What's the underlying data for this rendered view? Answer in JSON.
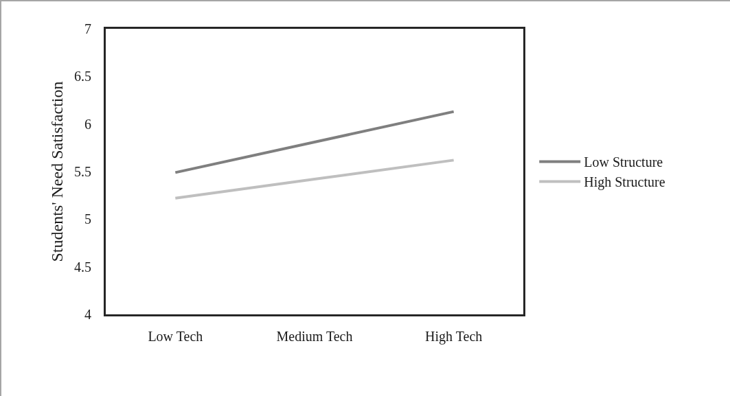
{
  "chart_data": {
    "type": "line",
    "ylabel": "Students' Need Satisfaction",
    "categories": [
      "Low Tech",
      "Medium Tech",
      "High Tech"
    ],
    "series": [
      {
        "name": "Low Structure",
        "color": "#7f7f7f",
        "values": [
          5.49,
          5.81,
          6.13
        ]
      },
      {
        "name": "High Structure",
        "color": "#bfbfbf",
        "values": [
          5.22,
          5.42,
          5.62
        ]
      }
    ],
    "ylim": [
      4,
      7
    ],
    "yticks": [
      4,
      4.5,
      5,
      5.5,
      6,
      6.5,
      7
    ],
    "grid": false,
    "legend": "right",
    "marker": "none",
    "line_style": "solid"
  }
}
